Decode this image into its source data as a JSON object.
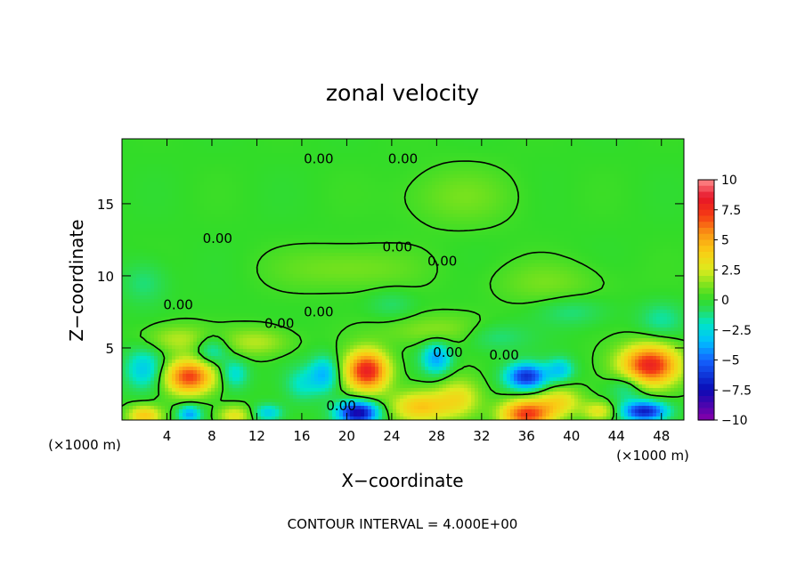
{
  "chart_data": {
    "type": "heatmap",
    "title": "zonal velocity",
    "xlabel": "X−coordinate",
    "ylabel": "Z−coordinate",
    "x_unit_left": "(×1000 m)",
    "x_unit_right": "(×1000 m)",
    "footer": "CONTOUR INTERVAL = 4.000E+00",
    "xlim": [
      0,
      50
    ],
    "ylim": [
      0,
      19.5
    ],
    "x_ticks": [
      {
        "v": 4,
        "label": "4"
      },
      {
        "v": 8,
        "label": "8"
      },
      {
        "v": 12,
        "label": "12"
      },
      {
        "v": 16,
        "label": "16"
      },
      {
        "v": 20,
        "label": "20"
      },
      {
        "v": 24,
        "label": "24"
      },
      {
        "v": 28,
        "label": "28"
      },
      {
        "v": 32,
        "label": "32"
      },
      {
        "v": 36,
        "label": "36"
      },
      {
        "v": 40,
        "label": "40"
      },
      {
        "v": 44,
        "label": "44"
      },
      {
        "v": 48,
        "label": "48"
      }
    ],
    "y_ticks": [
      {
        "v": 5,
        "label": "5"
      },
      {
        "v": 10,
        "label": "10"
      },
      {
        "v": 15,
        "label": "15"
      }
    ],
    "colorbar": {
      "min": -10,
      "max": 10,
      "ticks": [
        {
          "v": 10,
          "label": "10"
        },
        {
          "v": 7.5,
          "label": "7.5"
        },
        {
          "v": 5,
          "label": "5"
        },
        {
          "v": 2.5,
          "label": "2.5"
        },
        {
          "v": 0,
          "label": "0"
        },
        {
          "v": -2.5,
          "label": "−2.5"
        },
        {
          "v": -5,
          "label": "−5"
        },
        {
          "v": -7.5,
          "label": "−7.5"
        },
        {
          "v": -10,
          "label": "−10"
        }
      ]
    },
    "contour_labels": [
      {
        "x": 17.5,
        "y": 18.1,
        "label": "0.00"
      },
      {
        "x": 25.0,
        "y": 18.1,
        "label": "0.00"
      },
      {
        "x": 8.5,
        "y": 12.6,
        "label": "0.00"
      },
      {
        "x": 24.5,
        "y": 12.0,
        "label": "0.00"
      },
      {
        "x": 28.5,
        "y": 11.0,
        "label": "0.00"
      },
      {
        "x": 17.5,
        "y": 7.5,
        "label": "0.00"
      },
      {
        "x": 14.0,
        "y": 6.7,
        "label": "0.00"
      },
      {
        "x": 5.0,
        "y": 8.0,
        "label": "0.00"
      },
      {
        "x": 29.0,
        "y": 4.7,
        "label": "0.00"
      },
      {
        "x": 34.0,
        "y": 4.5,
        "label": "0.00"
      },
      {
        "x": 19.5,
        "y": 1.0,
        "label": "0.00"
      }
    ],
    "blobs": [
      {
        "x": 6,
        "y": 3.0,
        "sx": 2.2,
        "sy": 1.2,
        "a": 7
      },
      {
        "x": 21.8,
        "y": 3.4,
        "sx": 1.9,
        "sy": 1.4,
        "a": 8
      },
      {
        "x": 47,
        "y": 3.8,
        "sx": 2.6,
        "sy": 1.4,
        "a": 8
      },
      {
        "x": 36,
        "y": 0.4,
        "sx": 2.3,
        "sy": 1.0,
        "a": 7
      },
      {
        "x": 2,
        "y": 0.3,
        "sx": 1.5,
        "sy": 0.7,
        "a": 4
      },
      {
        "x": 10,
        "y": 0.3,
        "sx": 1.5,
        "sy": 0.7,
        "a": 3
      },
      {
        "x": 26.5,
        "y": 0.9,
        "sx": 2.6,
        "sy": 1.1,
        "a": 4
      },
      {
        "x": 30,
        "y": 1.5,
        "sx": 2.0,
        "sy": 1.4,
        "a": 3
      },
      {
        "x": 39,
        "y": 1.3,
        "sx": 2.0,
        "sy": 1.0,
        "a": 3
      },
      {
        "x": 42.5,
        "y": 0.6,
        "sx": 1.5,
        "sy": 0.7,
        "a": 3
      },
      {
        "x": 5,
        "y": 5.6,
        "sx": 3.0,
        "sy": 1.0,
        "a": 2
      },
      {
        "x": 12,
        "y": 5.4,
        "sx": 3.0,
        "sy": 1.0,
        "a": 2
      },
      {
        "x": 28,
        "y": 6.2,
        "sx": 5.0,
        "sy": 1.1,
        "a": 1.5
      },
      {
        "x": 20,
        "y": 10.5,
        "sx": 6.0,
        "sy": 1.5,
        "a": 1.2
      },
      {
        "x": 38,
        "y": 9.5,
        "sx": 5.0,
        "sy": 1.5,
        "a": 1.0
      },
      {
        "x": 30,
        "y": 15.5,
        "sx": 5.0,
        "sy": 2.0,
        "a": 1.0
      },
      {
        "x": 36,
        "y": 3.0,
        "sx": 1.8,
        "sy": 0.9,
        "a": -6.5
      },
      {
        "x": 21,
        "y": 0.5,
        "sx": 1.8,
        "sy": 0.8,
        "a": -8
      },
      {
        "x": 46.5,
        "y": 0.6,
        "sx": 2.0,
        "sy": 0.7,
        "a": -7
      },
      {
        "x": 28,
        "y": 4.3,
        "sx": 1.3,
        "sy": 1.1,
        "a": -4
      },
      {
        "x": 2,
        "y": 3.5,
        "sx": 1.7,
        "sy": 1.4,
        "a": -3
      },
      {
        "x": 8,
        "y": 4.8,
        "sx": 1.5,
        "sy": 1.0,
        "a": -2.5
      },
      {
        "x": 18,
        "y": 3.2,
        "sx": 1.3,
        "sy": 1.2,
        "a": -3.5
      },
      {
        "x": 39,
        "y": 3.5,
        "sx": 1.2,
        "sy": 0.8,
        "a": -3
      },
      {
        "x": 6,
        "y": 0.4,
        "sx": 1.0,
        "sy": 0.6,
        "a": -4
      },
      {
        "x": 13,
        "y": 0.5,
        "sx": 1.3,
        "sy": 0.6,
        "a": -3
      },
      {
        "x": 16,
        "y": 2.5,
        "sx": 1.5,
        "sy": 1.2,
        "a": -2
      },
      {
        "x": 10,
        "y": 3.2,
        "sx": 1.2,
        "sy": 1.0,
        "a": -2.5
      },
      {
        "x": 45,
        "y": 2.3,
        "sx": 1.5,
        "sy": 1.0,
        "a": -2
      },
      {
        "x": 33,
        "y": 5.8,
        "sx": 3.0,
        "sy": 1.0,
        "a": -1.5
      },
      {
        "x": 2,
        "y": 9.5,
        "sx": 2.0,
        "sy": 1.5,
        "a": -1.2
      },
      {
        "x": 40,
        "y": 7.5,
        "sx": 3.0,
        "sy": 1.0,
        "a": -1.2
      },
      {
        "x": 24,
        "y": 8.0,
        "sx": 2.0,
        "sy": 1.0,
        "a": -1.0
      },
      {
        "x": 48,
        "y": 7.0,
        "sx": 2.0,
        "sy": 1.2,
        "a": -1.5
      }
    ]
  }
}
